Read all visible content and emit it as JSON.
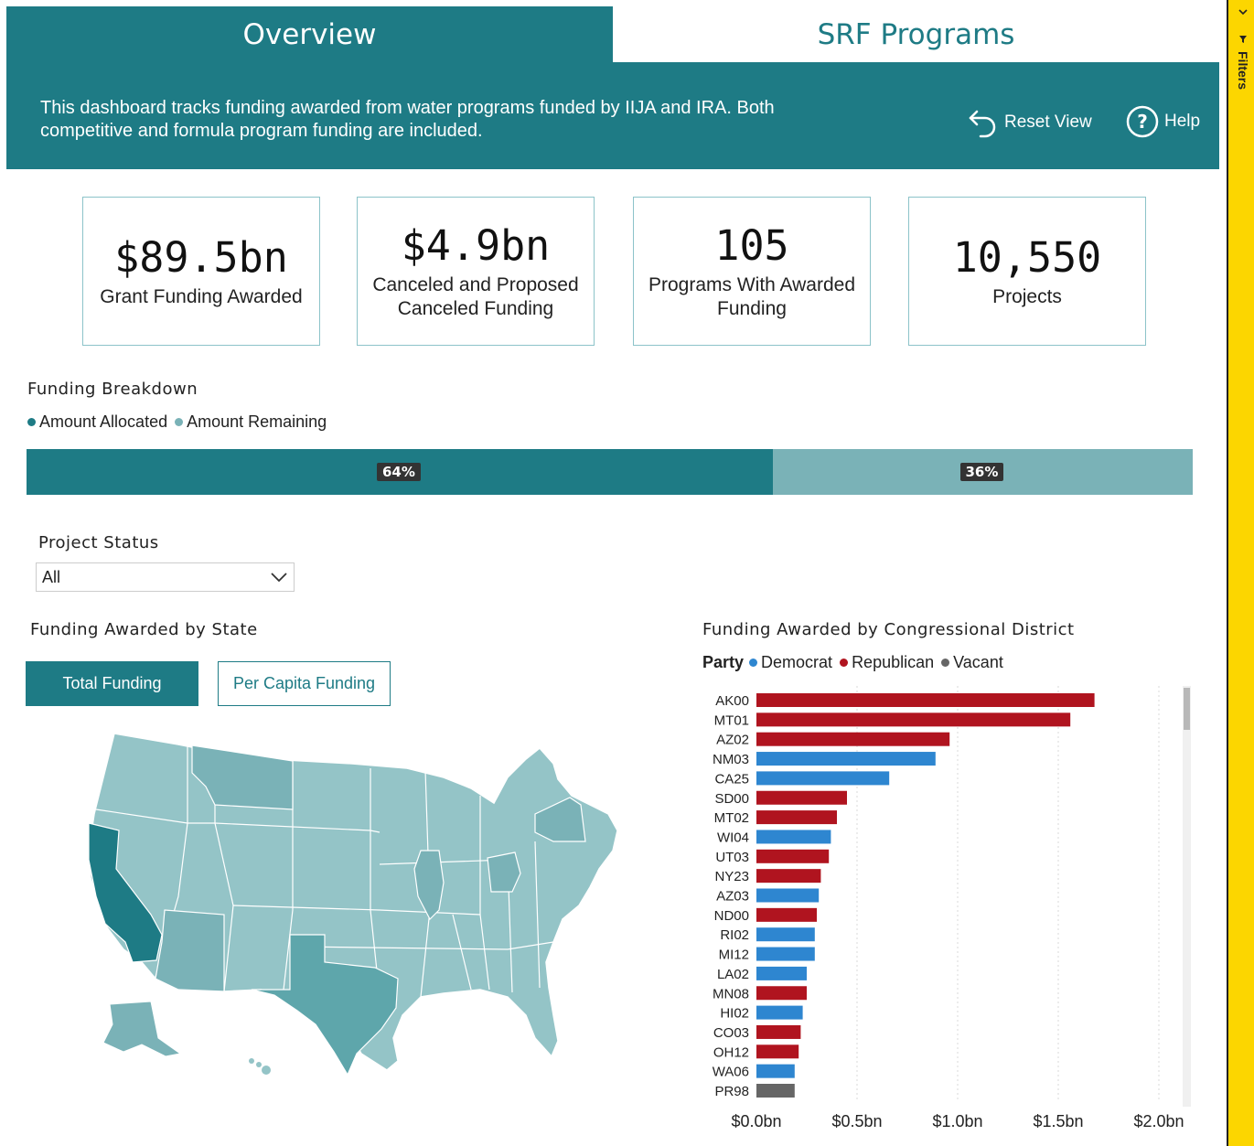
{
  "tabs": [
    {
      "label": "Overview",
      "active": true
    },
    {
      "label": "SRF Programs",
      "active": false
    }
  ],
  "banner": {
    "text": "This dashboard tracks funding awarded from water programs funded by IIJA and IRA. Both competitive and formula program funding are included.",
    "reset_label": "Reset View",
    "help_label": "Help"
  },
  "kpis": [
    {
      "value": "$89.5bn",
      "label": "Grant Funding Awarded"
    },
    {
      "value": "$4.9bn",
      "label": "Canceled and Proposed Canceled Funding"
    },
    {
      "value": "105",
      "label": "Programs With Awarded Funding"
    },
    {
      "value": "10,550",
      "label": "Projects"
    }
  ],
  "breakdown": {
    "title": "Funding Breakdown",
    "legend": [
      "Amount Allocated",
      "Amount Remaining"
    ],
    "allocated_pct": 64,
    "remaining_pct": 36,
    "allocated_label": "64%",
    "remaining_label": "36%"
  },
  "status_filter": {
    "label": "Project Status",
    "value": "All"
  },
  "state_map": {
    "title": "Funding Awarded by State",
    "total_button": "Total Funding",
    "per_capita_button": "Per Capita Funding"
  },
  "district_chart": {
    "title": "Funding Awarded by Congressional District",
    "party_label": "Party",
    "legend": [
      "Democrat",
      "Republican",
      "Vacant"
    ]
  },
  "filters_label": "Filters",
  "colors": {
    "teal": "#1e7b85",
    "teal_light": "#7ab2b7",
    "democrat": "#2e86d0",
    "republican": "#b0141f",
    "vacant": "#666666",
    "filter_pane": "#fcd600"
  },
  "chart_data": {
    "type": "bar",
    "orientation": "horizontal",
    "categories": [
      "AK00",
      "MT01",
      "AZ02",
      "NM03",
      "CA25",
      "SD00",
      "MT02",
      "WI04",
      "UT03",
      "NY23",
      "AZ03",
      "ND00",
      "RI02",
      "MI12",
      "LA02",
      "MN08",
      "HI02",
      "CO03",
      "OH12",
      "WA06",
      "PR98"
    ],
    "values": [
      1.68,
      1.56,
      0.96,
      0.89,
      0.66,
      0.45,
      0.4,
      0.37,
      0.36,
      0.32,
      0.31,
      0.3,
      0.29,
      0.29,
      0.25,
      0.25,
      0.23,
      0.22,
      0.21,
      0.19,
      0.19
    ],
    "party": [
      "Republican",
      "Republican",
      "Republican",
      "Democrat",
      "Democrat",
      "Republican",
      "Republican",
      "Democrat",
      "Republican",
      "Republican",
      "Democrat",
      "Republican",
      "Democrat",
      "Democrat",
      "Democrat",
      "Republican",
      "Democrat",
      "Republican",
      "Republican",
      "Democrat",
      "Vacant"
    ],
    "x_ticks": [
      "$0.0bn",
      "$0.5bn",
      "$1.0bn",
      "$1.5bn",
      "$2.0bn"
    ],
    "xlim": [
      0,
      2.0
    ],
    "grid": true
  }
}
